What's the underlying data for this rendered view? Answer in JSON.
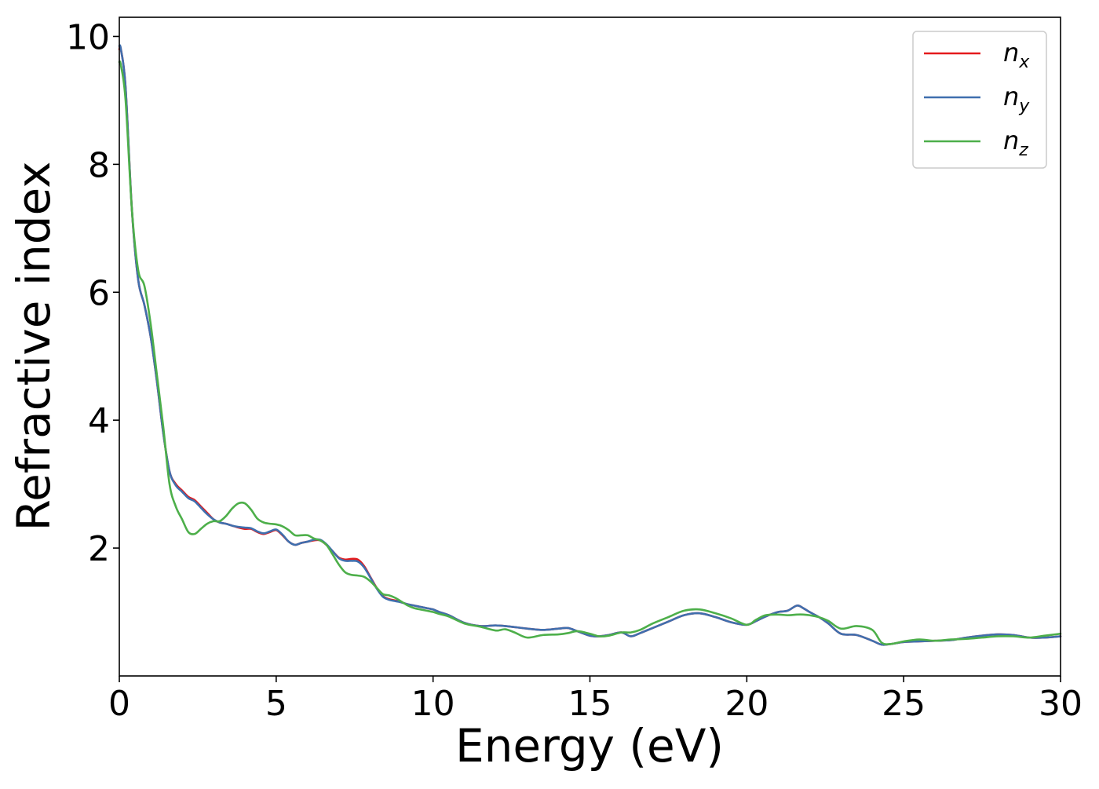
{
  "chart_data": {
    "type": "line",
    "title": "",
    "xlabel": "Energy (eV)",
    "ylabel": "Refractive index",
    "xlim": [
      0,
      30
    ],
    "ylim": [
      0,
      10.3
    ],
    "xticks": [
      0,
      5,
      10,
      15,
      20,
      25,
      30
    ],
    "yticks": [
      2,
      4,
      6,
      8,
      10
    ],
    "grid": false,
    "legend_position": "top-right",
    "series": [
      {
        "name": "n_x",
        "label_base": "n",
        "label_sub": "x",
        "color": "#e41a1c",
        "x": [
          0,
          0.05,
          0.2,
          0.4,
          0.6,
          0.8,
          1.0,
          1.2,
          1.4,
          1.6,
          1.8,
          2.0,
          2.2,
          2.4,
          2.6,
          2.8,
          3.0,
          3.2,
          3.4,
          3.6,
          3.8,
          4.0,
          4.2,
          4.4,
          4.6,
          4.8,
          5.0,
          5.2,
          5.4,
          5.6,
          5.8,
          6.0,
          6.2,
          6.4,
          6.6,
          6.8,
          7.0,
          7.2,
          7.4,
          7.6,
          7.8,
          8.0,
          8.2,
          8.4,
          8.6,
          8.8,
          9.0,
          9.2,
          9.4,
          9.6,
          9.8,
          10.0,
          10.2,
          10.5,
          11.0,
          11.5,
          12.0,
          12.5,
          13.0,
          13.5,
          14.0,
          14.3,
          14.6,
          15.0,
          15.3,
          15.6,
          16.0,
          16.3,
          16.6,
          17.0,
          17.5,
          18.0,
          18.5,
          19.0,
          19.5,
          20.0,
          20.3,
          20.6,
          21.0,
          21.3,
          21.6,
          21.8,
          22.0,
          22.3,
          22.6,
          23.0,
          23.5,
          24.0,
          24.3,
          24.6,
          25.0,
          25.5,
          26.0,
          26.5,
          27.0,
          27.5,
          28.0,
          28.5,
          29.0,
          29.5,
          30.0
        ],
        "values": [
          9.8,
          9.8,
          9.2,
          7.3,
          6.2,
          5.8,
          5.3,
          4.6,
          3.8,
          3.2,
          3.0,
          2.9,
          2.8,
          2.75,
          2.65,
          2.55,
          2.45,
          2.4,
          2.38,
          2.35,
          2.32,
          2.3,
          2.3,
          2.25,
          2.22,
          2.25,
          2.28,
          2.2,
          2.1,
          2.05,
          2.08,
          2.1,
          2.12,
          2.12,
          2.05,
          1.95,
          1.85,
          1.82,
          1.83,
          1.82,
          1.72,
          1.55,
          1.38,
          1.25,
          1.2,
          1.18,
          1.15,
          1.12,
          1.1,
          1.08,
          1.06,
          1.04,
          1.0,
          0.95,
          0.83,
          0.78,
          0.79,
          0.77,
          0.74,
          0.72,
          0.74,
          0.75,
          0.7,
          0.63,
          0.62,
          0.64,
          0.68,
          0.62,
          0.67,
          0.75,
          0.85,
          0.95,
          0.98,
          0.92,
          0.84,
          0.8,
          0.86,
          0.93,
          1.0,
          1.02,
          1.1,
          1.06,
          1.0,
          0.92,
          0.82,
          0.66,
          0.64,
          0.55,
          0.49,
          0.5,
          0.53,
          0.54,
          0.55,
          0.56,
          0.6,
          0.63,
          0.65,
          0.64,
          0.6,
          0.6,
          0.62
        ]
      },
      {
        "name": "n_y",
        "label_base": "n",
        "label_sub": "y",
        "color": "#3f6fae",
        "x": [
          0,
          0.05,
          0.2,
          0.4,
          0.6,
          0.8,
          1.0,
          1.2,
          1.4,
          1.6,
          1.8,
          2.0,
          2.2,
          2.4,
          2.6,
          2.8,
          3.0,
          3.2,
          3.4,
          3.6,
          3.8,
          4.0,
          4.2,
          4.4,
          4.6,
          4.8,
          5.0,
          5.2,
          5.4,
          5.6,
          5.8,
          6.0,
          6.2,
          6.4,
          6.6,
          6.8,
          7.0,
          7.2,
          7.4,
          7.6,
          7.8,
          8.0,
          8.2,
          8.4,
          8.6,
          8.8,
          9.0,
          9.2,
          9.4,
          9.6,
          9.8,
          10.0,
          10.2,
          10.5,
          11.0,
          11.5,
          12.0,
          12.5,
          13.0,
          13.5,
          14.0,
          14.3,
          14.6,
          15.0,
          15.3,
          15.6,
          16.0,
          16.3,
          16.6,
          17.0,
          17.5,
          18.0,
          18.5,
          19.0,
          19.5,
          20.0,
          20.3,
          20.6,
          21.0,
          21.3,
          21.6,
          21.8,
          22.0,
          22.3,
          22.6,
          23.0,
          23.5,
          24.0,
          24.3,
          24.6,
          25.0,
          25.5,
          26.0,
          26.5,
          27.0,
          27.5,
          28.0,
          28.5,
          29.0,
          29.5,
          30.0
        ],
        "values": [
          9.85,
          9.8,
          9.2,
          7.3,
          6.2,
          5.8,
          5.3,
          4.6,
          3.8,
          3.2,
          2.98,
          2.88,
          2.78,
          2.73,
          2.63,
          2.53,
          2.45,
          2.4,
          2.38,
          2.35,
          2.33,
          2.32,
          2.31,
          2.26,
          2.23,
          2.26,
          2.29,
          2.21,
          2.1,
          2.05,
          2.08,
          2.1,
          2.13,
          2.13,
          2.06,
          1.95,
          1.84,
          1.8,
          1.8,
          1.79,
          1.7,
          1.54,
          1.37,
          1.24,
          1.19,
          1.17,
          1.15,
          1.12,
          1.1,
          1.08,
          1.06,
          1.04,
          1.0,
          0.95,
          0.83,
          0.78,
          0.79,
          0.77,
          0.74,
          0.72,
          0.74,
          0.75,
          0.7,
          0.63,
          0.62,
          0.64,
          0.68,
          0.62,
          0.67,
          0.75,
          0.85,
          0.95,
          0.98,
          0.92,
          0.84,
          0.8,
          0.86,
          0.93,
          1.0,
          1.02,
          1.1,
          1.06,
          1.0,
          0.92,
          0.82,
          0.66,
          0.64,
          0.55,
          0.49,
          0.5,
          0.53,
          0.54,
          0.55,
          0.56,
          0.6,
          0.63,
          0.65,
          0.64,
          0.6,
          0.6,
          0.62
        ]
      },
      {
        "name": "n_z",
        "label_base": "n",
        "label_sub": "z",
        "color": "#4daf4a",
        "x": [
          0,
          0.05,
          0.2,
          0.4,
          0.6,
          0.8,
          1.0,
          1.2,
          1.4,
          1.6,
          1.8,
          2.0,
          2.2,
          2.4,
          2.6,
          2.8,
          3.0,
          3.2,
          3.4,
          3.6,
          3.8,
          4.0,
          4.2,
          4.4,
          4.6,
          4.8,
          5.0,
          5.2,
          5.4,
          5.6,
          5.8,
          6.0,
          6.2,
          6.4,
          6.6,
          6.8,
          7.0,
          7.2,
          7.4,
          7.6,
          7.8,
          8.0,
          8.2,
          8.4,
          8.6,
          8.8,
          9.0,
          9.2,
          9.4,
          9.6,
          9.8,
          10.0,
          10.2,
          10.5,
          11.0,
          11.5,
          12.0,
          12.3,
          12.6,
          13.0,
          13.5,
          14.0,
          14.3,
          14.6,
          15.0,
          15.3,
          15.6,
          16.0,
          16.3,
          16.6,
          17.0,
          17.5,
          18.0,
          18.5,
          19.0,
          19.5,
          20.0,
          20.3,
          20.6,
          21.0,
          21.3,
          21.6,
          21.8,
          22.0,
          22.3,
          22.6,
          23.0,
          23.5,
          24.0,
          24.3,
          24.6,
          25.0,
          25.5,
          26.0,
          26.5,
          27.0,
          27.5,
          28.0,
          28.5,
          29.0,
          29.5,
          30.0
        ],
        "values": [
          9.6,
          9.55,
          9.0,
          7.3,
          6.35,
          6.1,
          5.5,
          4.7,
          3.9,
          3.0,
          2.65,
          2.45,
          2.25,
          2.22,
          2.3,
          2.38,
          2.42,
          2.42,
          2.5,
          2.62,
          2.7,
          2.7,
          2.6,
          2.46,
          2.4,
          2.38,
          2.37,
          2.34,
          2.28,
          2.2,
          2.2,
          2.2,
          2.15,
          2.12,
          2.05,
          1.9,
          1.74,
          1.62,
          1.58,
          1.57,
          1.55,
          1.48,
          1.38,
          1.28,
          1.26,
          1.22,
          1.16,
          1.1,
          1.06,
          1.04,
          1.02,
          1.0,
          0.97,
          0.93,
          0.82,
          0.77,
          0.71,
          0.73,
          0.68,
          0.6,
          0.64,
          0.65,
          0.67,
          0.7,
          0.66,
          0.62,
          0.63,
          0.68,
          0.68,
          0.72,
          0.82,
          0.92,
          1.02,
          1.04,
          0.98,
          0.9,
          0.8,
          0.88,
          0.95,
          0.96,
          0.95,
          0.96,
          0.96,
          0.95,
          0.92,
          0.86,
          0.74,
          0.78,
          0.72,
          0.52,
          0.5,
          0.54,
          0.57,
          0.55,
          0.57,
          0.58,
          0.6,
          0.62,
          0.62,
          0.6,
          0.63,
          0.66
        ]
      }
    ]
  }
}
